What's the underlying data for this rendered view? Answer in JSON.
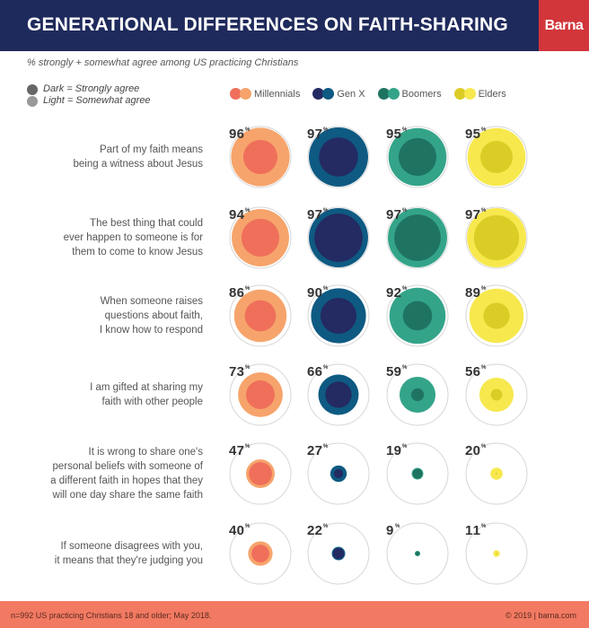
{
  "header": {
    "title": "GENERATIONAL DIFFERENCES ON FAITH-SHARING",
    "logo": "Barna"
  },
  "subtitle": "% strongly + somewhat agree among US practicing Christians",
  "key": {
    "dark": "Dark = Strongly agree",
    "light": "Light = Somewhat agree",
    "dark_color": "#666666",
    "light_color": "#999999"
  },
  "footer": {
    "note": "n=992 US practicing Christians 18 and older; May 2018.",
    "credit": "© 2019 | barna.com"
  },
  "chart_data": {
    "type": "bubble",
    "title": "GENERATIONAL DIFFERENCES ON FAITH-SHARING",
    "subtitle": "% strongly + somewhat agree among US practicing Christians",
    "value_scale_max": 100,
    "series": [
      {
        "name": "Millennials",
        "light": "#f6a46b",
        "dark": "#ef6f5b"
      },
      {
        "name": "Gen X",
        "light": "#0e5a82",
        "dark": "#242a62"
      },
      {
        "name": "Boomers",
        "light": "#34a489",
        "dark": "#1f7461"
      },
      {
        "name": "Elders",
        "light": "#f7e84e",
        "dark": "#dccd26"
      }
    ],
    "statements": [
      "Part of my faith means\nbeing a witness about Jesus",
      "The best thing that could\never happen to someone is for\nthem to come to know Jesus",
      "When someone raises\nquestions about faith,\nI know how to respond",
      "I am gifted at sharing my\nfaith with other people",
      "It is wrong to share one's\npersonal beliefs with someone of\na different faith in hopes that they\nwill one day share the same faith",
      "If someone disagrees with you,\nit means that they're judging you"
    ],
    "total_agree": [
      [
        96,
        97,
        95,
        95
      ],
      [
        94,
        97,
        97,
        97
      ],
      [
        86,
        90,
        92,
        89
      ],
      [
        73,
        66,
        59,
        56
      ],
      [
        47,
        27,
        19,
        20
      ],
      [
        40,
        22,
        9,
        11
      ]
    ],
    "strongly_agree_estimated": [
      [
        56,
        64,
        62,
        53
      ],
      [
        62,
        79,
        76,
        74
      ],
      [
        51,
        59,
        48,
        43
      ],
      [
        47,
        43,
        21,
        19
      ],
      [
        38,
        15,
        16,
        3
      ],
      [
        29,
        18,
        7,
        3
      ]
    ],
    "label_suffix": "%"
  }
}
